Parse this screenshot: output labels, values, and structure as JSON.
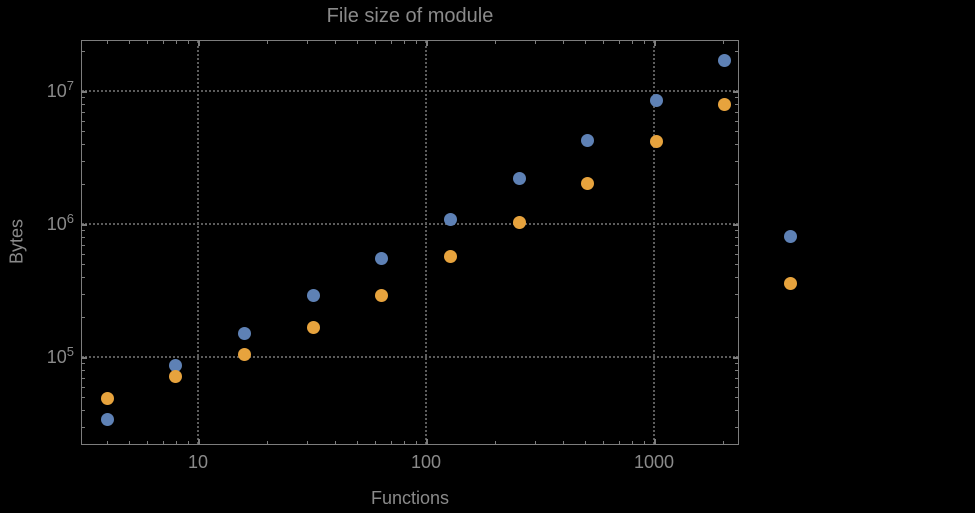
{
  "chart_data": {
    "type": "scatter",
    "title": "File size of module",
    "xlabel": "Functions",
    "ylabel": "Bytes",
    "x_scale": "log",
    "y_scale": "log",
    "xlim": [
      3.07,
      2360
    ],
    "ylim": [
      21800,
      24200000
    ],
    "grid": true,
    "x_ticks": [
      10,
      100,
      1000
    ],
    "x_tick_labels": [
      "10",
      "100",
      "1000"
    ],
    "y_ticks": [
      100000,
      1000000,
      10000000
    ],
    "y_tick_labels": [
      {
        "mantissa": "10",
        "exponent": "5"
      },
      {
        "mantissa": "10",
        "exponent": "6"
      },
      {
        "mantissa": "10",
        "exponent": "7"
      }
    ],
    "x": [
      4,
      8,
      16,
      32,
      64,
      128,
      256,
      512,
      1024,
      2048
    ],
    "series": [
      {
        "name": "series-1-blue",
        "color": "#5e81b5",
        "values": [
          34000,
          87000,
          151000,
          288000,
          555000,
          1090000,
          2180000,
          4280000,
          8550000,
          17100000
        ]
      },
      {
        "name": "series-2-orange",
        "color": "#e7a33d",
        "values": [
          49000,
          71000,
          104000,
          168000,
          292000,
          565000,
          1020000,
          2030000,
          4140000,
          7980000
        ]
      }
    ],
    "legend": {
      "position": "right",
      "labels_visible": false,
      "markers": [
        {
          "series": "series-1-blue",
          "color": "#5e81b5"
        },
        {
          "series": "series-2-orange",
          "color": "#e7a33d"
        }
      ]
    }
  },
  "colors": {
    "background": "#000000",
    "frame": "#7d7d7d",
    "gridlines": "#5c5c5c",
    "text": "#8a8a8a",
    "series_blue": "#5e81b5",
    "series_orange": "#e7a33d"
  }
}
